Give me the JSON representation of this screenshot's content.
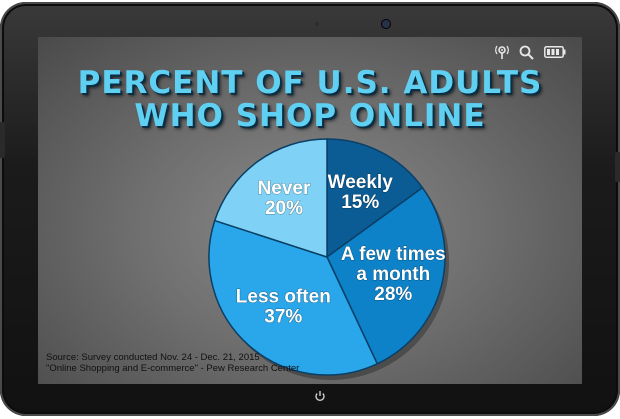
{
  "title": {
    "line1": "PERCENT OF U.S. ADULTS",
    "line2": "WHO SHOP ONLINE"
  },
  "status_icons": [
    "broadcast-icon",
    "search-icon",
    "battery-icon"
  ],
  "source": {
    "line1": "Source: Survey conducted Nov. 24 - Dec. 21, 2015",
    "line2": "\"Online Shopping and E-commerce\"  - Pew Research Center"
  },
  "colors": {
    "title": "#5fd0f2",
    "weekly": "#0b5c94",
    "few_times": "#0d82c9",
    "less_often": "#2aa7ea",
    "never": "#7fd2f6"
  },
  "chart_data": {
    "type": "pie",
    "title": "PERCENT OF U.S. ADULTS WHO SHOP ONLINE",
    "slices": [
      {
        "label_line1": "Weekly",
        "label_line2": "15%",
        "value": 15,
        "color": "#0b5c94"
      },
      {
        "label_line1": "A few times",
        "label_line2": "a month",
        "label_line3": "28%",
        "value": 28,
        "color": "#0d82c9"
      },
      {
        "label_line1": "Less often",
        "label_line2": "37%",
        "value": 37,
        "color": "#2aa7ea"
      },
      {
        "label_line1": "Never",
        "label_line2": "20%",
        "value": 20,
        "color": "#7fd2f6"
      }
    ]
  }
}
